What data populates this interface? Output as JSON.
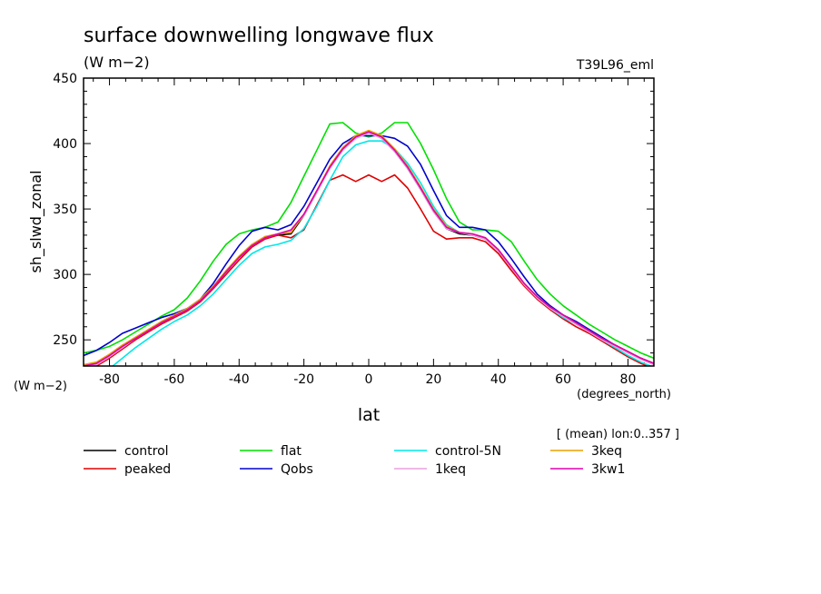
{
  "chart_data": {
    "type": "line",
    "title": "surface downwelling longwave flux",
    "units_label": "(W m−2)",
    "ylabel": "sh_slwd_zonal",
    "y_corner_units": "(W m−2)",
    "xlabel": "lat",
    "x_units": "(degrees_north)",
    "dataset_label": "T39L96_eml",
    "subset_note": "[ (mean) lon:0..357 ]",
    "xlim": [
      -88,
      88
    ],
    "ylim": [
      230,
      450
    ],
    "x_ticks": [
      -80,
      -60,
      -40,
      -20,
      0,
      20,
      40,
      60,
      80
    ],
    "y_ticks": [
      250,
      300,
      350,
      400,
      450
    ],
    "x": [
      -88,
      -84,
      -80,
      -76,
      -72,
      -68,
      -64,
      -60,
      -56,
      -52,
      -48,
      -44,
      -40,
      -36,
      -32,
      -28,
      -24,
      -20,
      -16,
      -12,
      -8,
      -4,
      0,
      4,
      8,
      12,
      16,
      20,
      24,
      28,
      32,
      36,
      40,
      44,
      48,
      52,
      56,
      60,
      64,
      68,
      72,
      76,
      80,
      84,
      88
    ],
    "series": [
      {
        "name": "control",
        "color": "#000000",
        "values": [
          230,
          232,
          238,
          245,
          251,
          257,
          263,
          268,
          273,
          280,
          290,
          302,
          313,
          322,
          328,
          330,
          331,
          345,
          363,
          382,
          396,
          405,
          409,
          404,
          394,
          381,
          365,
          348,
          335,
          331,
          330,
          327,
          318,
          305,
          292,
          282,
          274,
          268,
          262,
          257,
          251,
          246,
          241,
          236,
          232
        ]
      },
      {
        "name": "peaked",
        "color": "#e00000",
        "values": [
          228,
          230,
          236,
          243,
          250,
          256,
          262,
          267,
          272,
          279,
          289,
          300,
          311,
          321,
          327,
          330,
          328,
          334,
          353,
          372,
          376,
          371,
          376,
          371,
          376,
          366,
          350,
          333,
          327,
          328,
          328,
          325,
          316,
          303,
          291,
          281,
          273,
          266,
          260,
          255,
          249,
          243,
          237,
          232,
          228
        ]
      },
      {
        "name": "flat",
        "color": "#00e000",
        "values": [
          240,
          242,
          245,
          250,
          256,
          262,
          268,
          273,
          282,
          295,
          310,
          323,
          331,
          334,
          336,
          340,
          355,
          375,
          395,
          415,
          416,
          408,
          405,
          408,
          416,
          416,
          400,
          380,
          358,
          340,
          334,
          334,
          333,
          325,
          310,
          296,
          285,
          276,
          269,
          262,
          256,
          250,
          245,
          240,
          236
        ]
      },
      {
        "name": "Qobs",
        "color": "#0000d0",
        "values": [
          238,
          242,
          248,
          255,
          259,
          263,
          267,
          270,
          274,
          281,
          293,
          308,
          322,
          333,
          336,
          334,
          338,
          352,
          370,
          388,
          400,
          406,
          406,
          406,
          404,
          398,
          384,
          364,
          345,
          336,
          336,
          334,
          325,
          312,
          298,
          285,
          276,
          269,
          264,
          258,
          252,
          246,
          240,
          236,
          232
        ]
      },
      {
        "name": "control-5N",
        "color": "#00e8e8",
        "values": [
          218,
          221,
          228,
          236,
          244,
          251,
          258,
          264,
          269,
          276,
          285,
          296,
          307,
          316,
          321,
          323,
          326,
          335,
          352,
          372,
          390,
          399,
          402,
          402,
          396,
          385,
          370,
          352,
          338,
          332,
          330,
          327,
          319,
          306,
          293,
          282,
          274,
          267,
          262,
          256,
          250,
          244,
          238,
          233,
          229
        ]
      },
      {
        "name": "1keq",
        "color": "#e8a0e0",
        "values": [
          229,
          231,
          237,
          244,
          251,
          257,
          263,
          268,
          273,
          280,
          290,
          302,
          313,
          322,
          328,
          331,
          333,
          345,
          363,
          381,
          395,
          404,
          408,
          404,
          394,
          381,
          365,
          348,
          335,
          332,
          330,
          327,
          318,
          305,
          292,
          282,
          274,
          268,
          262,
          256,
          250,
          245,
          240,
          235,
          231
        ]
      },
      {
        "name": "3keq",
        "color": "#e8a000",
        "values": [
          231,
          233,
          239,
          246,
          252,
          258,
          264,
          269,
          274,
          281,
          291,
          303,
          314,
          323,
          329,
          331,
          332,
          346,
          364,
          383,
          397,
          406,
          410,
          406,
          396,
          383,
          367,
          350,
          337,
          332,
          331,
          328,
          319,
          306,
          293,
          283,
          275,
          269,
          263,
          257,
          251,
          246,
          241,
          236,
          232
        ]
      },
      {
        "name": "3kw1",
        "color": "#e000b0",
        "values": [
          230,
          232,
          238,
          245,
          251,
          257,
          263,
          268,
          273,
          280,
          290,
          302,
          313,
          322,
          328,
          331,
          334,
          346,
          364,
          382,
          396,
          405,
          409,
          405,
          395,
          382,
          366,
          349,
          336,
          332,
          331,
          328,
          319,
          306,
          293,
          283,
          275,
          269,
          263,
          257,
          251,
          246,
          241,
          236,
          232
        ]
      }
    ]
  }
}
